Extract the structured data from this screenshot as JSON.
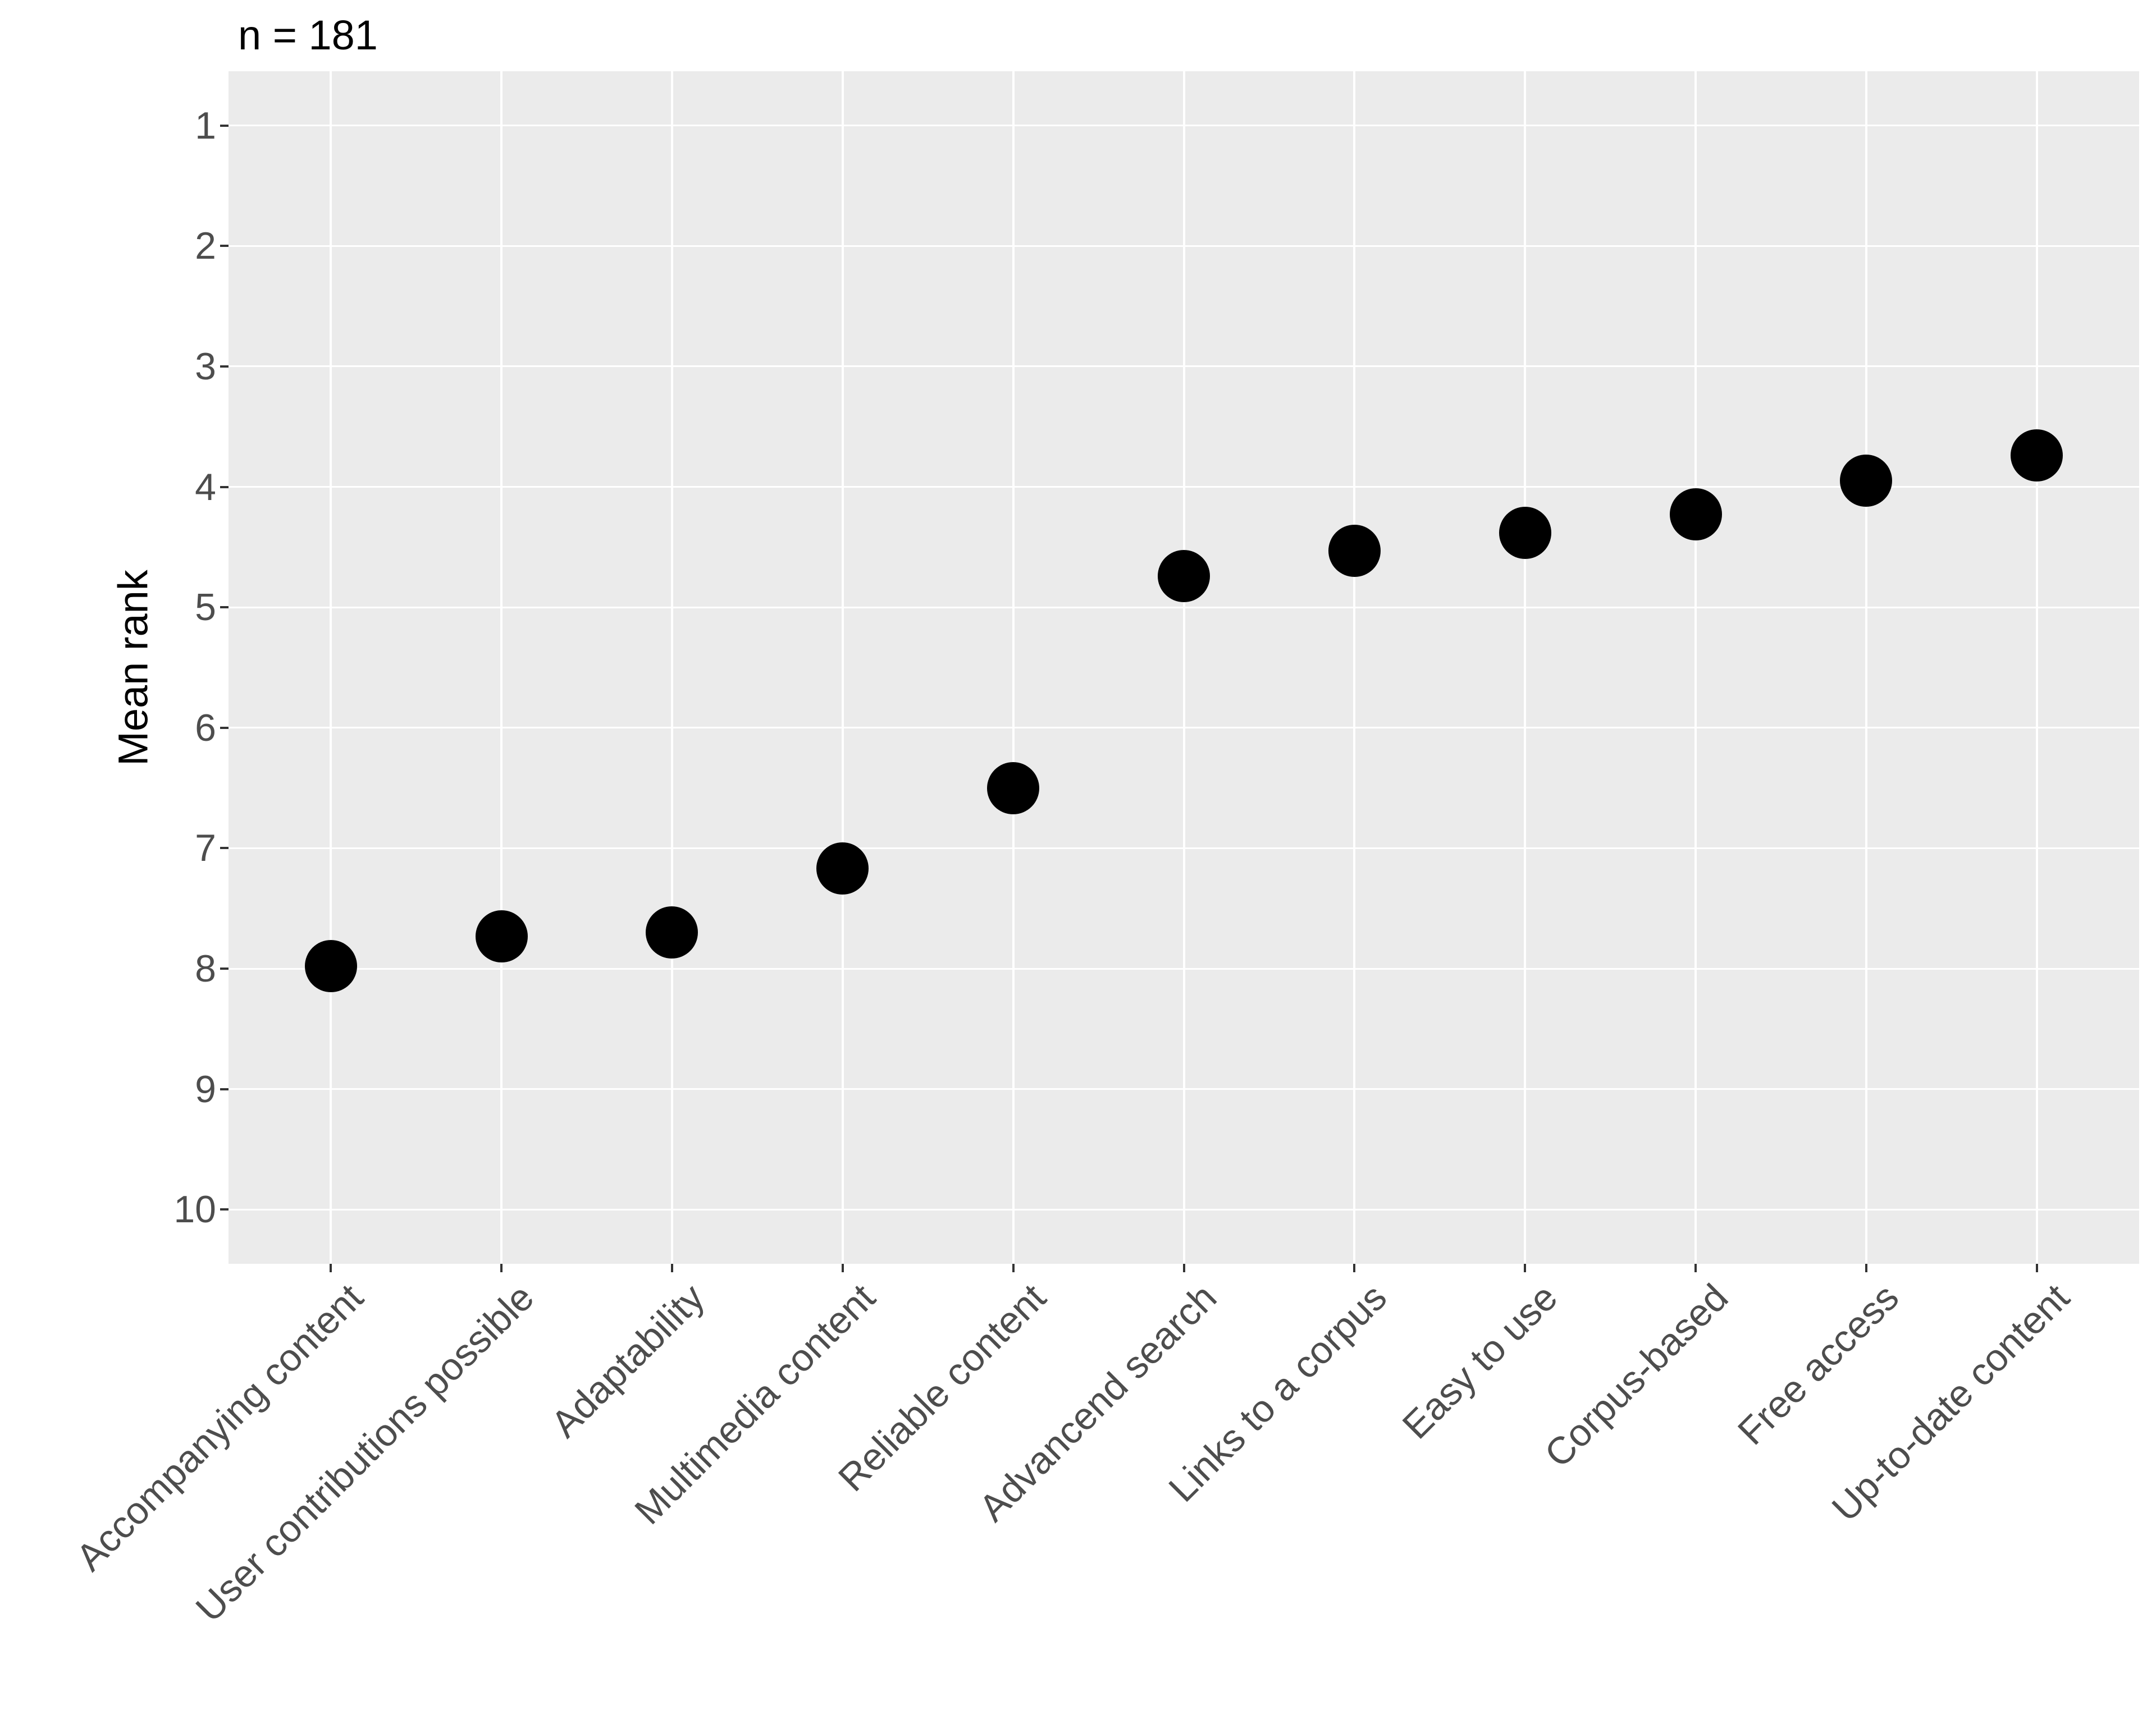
{
  "header": {
    "title": "n = 181"
  },
  "chart_data": {
    "type": "scatter",
    "title": "n = 181",
    "xlabel": "",
    "ylabel": "Mean rank",
    "categories": [
      "Accompanying content",
      "User contributions possible",
      "Adaptability",
      "Multimedia content",
      "Reliable content",
      "Advancend search",
      "Links to a corpus",
      "Easy to use",
      "Corpus-based",
      "Free access",
      "Up-to-date content"
    ],
    "values": [
      7.98,
      7.73,
      7.7,
      7.17,
      6.5,
      4.74,
      4.53,
      4.38,
      4.23,
      3.95,
      3.74
    ],
    "y_ticks": [
      1,
      2,
      3,
      4,
      5,
      6,
      7,
      8,
      9,
      10
    ],
    "y_axis_reversed": true,
    "ylim": [
      0.55,
      10.45
    ],
    "grid": "major-only-white-on-grey",
    "legend_position": "none",
    "point_color": "#000000"
  },
  "colors": {
    "panel_background": "#ebebeb",
    "gridline": "#ffffff",
    "axis_text": "#4d4d4d",
    "title_text": "#000000",
    "tick_mark": "#333333",
    "point": "#000000",
    "page_background": "#ffffff"
  }
}
